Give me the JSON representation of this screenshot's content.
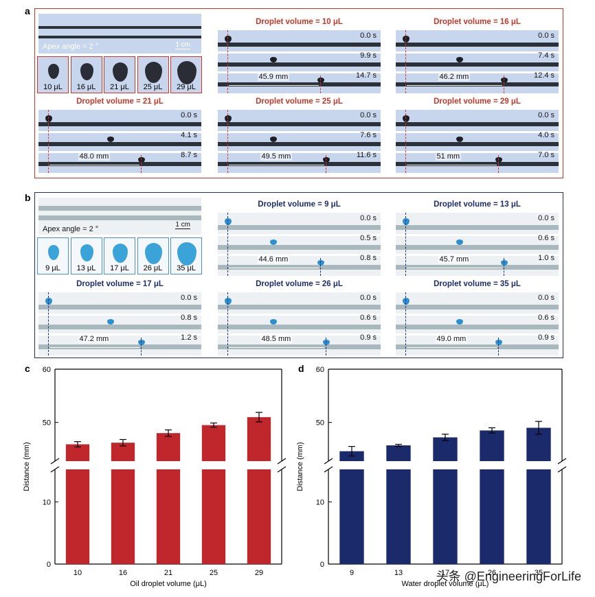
{
  "panels": {
    "a": {
      "letter": "a",
      "apex": "Apex angle = 2 °",
      "scale": "1 cm",
      "thumbs": [
        "10 μL",
        "16 μL",
        "21 μL",
        "25 μL",
        "29 μL"
      ],
      "cells": [
        {
          "title": "Droplet volume = 10 μL",
          "times": [
            "0.0 s",
            "9.9 s",
            "14.7 s"
          ],
          "distance": "45.9 mm"
        },
        {
          "title": "Droplet volume = 16 μL",
          "times": [
            "0.0 s",
            "7.4 s",
            "12.4 s"
          ],
          "distance": "46.2 mm"
        },
        {
          "title": "Droplet volume = 21 μL",
          "times": [
            "0.0 s",
            "4.1 s",
            "8.7 s"
          ],
          "distance": "48.0 mm"
        },
        {
          "title": "Droplet volume = 25 μL",
          "times": [
            "0.0 s",
            "7.6 s",
            "11.6 s"
          ],
          "distance": "49.5 mm"
        },
        {
          "title": "Droplet volume = 29 μL",
          "times": [
            "0.0 s",
            "4.0 s",
            "7.0 s"
          ],
          "distance": "51 mm"
        }
      ]
    },
    "b": {
      "letter": "b",
      "apex": "Apex angle = 2 °",
      "scale": "1 cm",
      "thumbs": [
        "9 μL",
        "13 μL",
        "17 μL",
        "26 μL",
        "35 μL"
      ],
      "cells": [
        {
          "title": "Droplet volume = 9 μL",
          "times": [
            "0.0 s",
            "0.5 s",
            "0.8 s"
          ],
          "distance": "44.6 mm"
        },
        {
          "title": "Droplet volume = 13 μL",
          "times": [
            "0.0 s",
            "0.6 s",
            "1.0 s"
          ],
          "distance": "45.7 mm"
        },
        {
          "title": "Droplet volume = 17 μL",
          "times": [
            "0.0 s",
            "0.8 s",
            "1.2 s"
          ],
          "distance": "47.2 mm"
        },
        {
          "title": "Droplet volume = 26 μL",
          "times": [
            "0.0 s",
            "0.6 s",
            "0.9 s"
          ],
          "distance": "48.5 mm"
        },
        {
          "title": "Droplet volume = 35 μL",
          "times": [
            "0.0 s",
            "0.6 s",
            "0.9 s"
          ],
          "distance": "49.0 mm"
        }
      ]
    }
  },
  "chart_data": [
    {
      "letter": "c",
      "type": "bar",
      "categories": [
        "10",
        "16",
        "21",
        "25",
        "29"
      ],
      "values": [
        45.9,
        46.2,
        48.0,
        49.5,
        51.0
      ],
      "errors": [
        0.5,
        0.6,
        0.6,
        0.4,
        0.9
      ],
      "xlabel": "Oil droplet volume (μL)",
      "ylabel": "Distance (mm)",
      "yticks": [
        "0",
        "10",
        "50",
        "60"
      ],
      "ylim": [
        0,
        60
      ],
      "axis_break": [
        15,
        43
      ],
      "color": "#c0272d"
    },
    {
      "letter": "d",
      "type": "bar",
      "categories": [
        "9",
        "13",
        "17",
        "26",
        "35"
      ],
      "values": [
        44.6,
        45.7,
        47.2,
        48.5,
        49.0
      ],
      "errors": [
        0.9,
        0.2,
        0.6,
        0.5,
        1.2
      ],
      "xlabel": "Water droplet volume (μL)",
      "ylabel": "Distance (mm)",
      "yticks": [
        "0",
        "10",
        "50",
        "60"
      ],
      "ylim": [
        0,
        60
      ],
      "axis_break": [
        15,
        43
      ],
      "color": "#1b2a6b"
    }
  ],
  "watermark": "头条 @EngineeringForLife"
}
